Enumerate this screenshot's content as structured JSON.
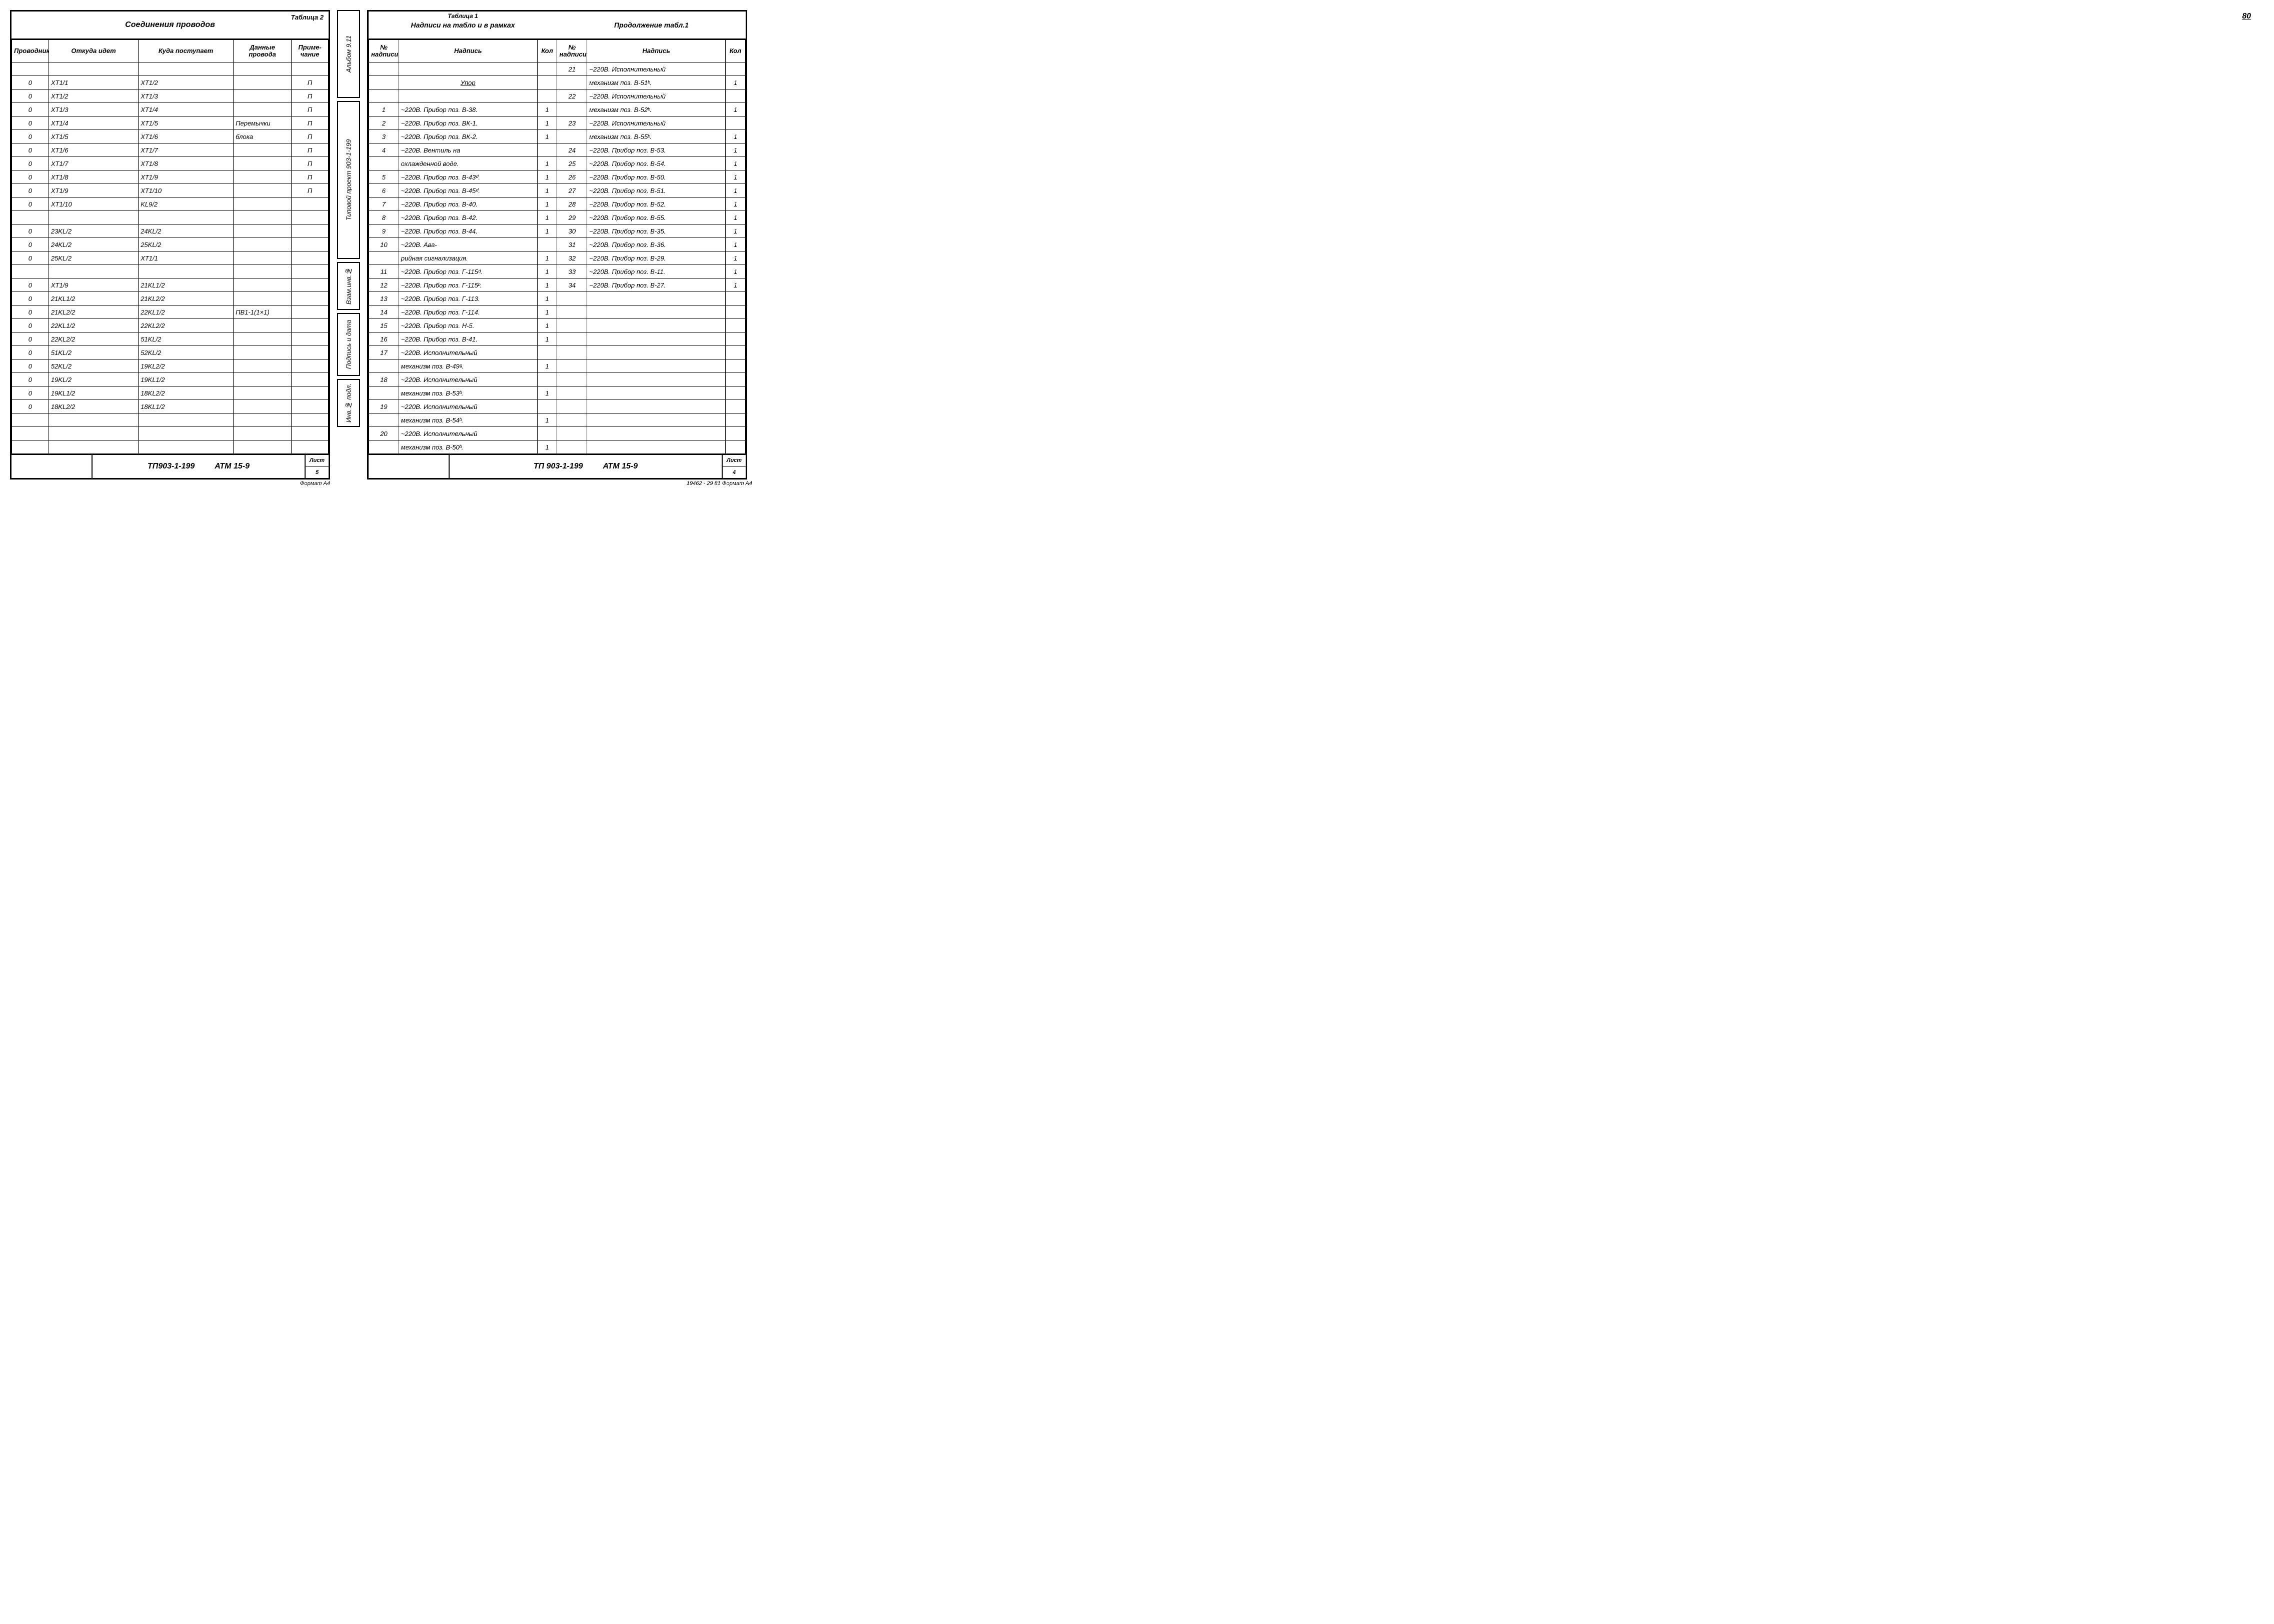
{
  "page_number": "80",
  "format_note_left": "Формат А4",
  "format_note_right": "19462 - 29  81   Формат А4",
  "left": {
    "table_label": "Таблица 2",
    "title": "Соединения проводов",
    "columns": [
      "Проводник",
      "Откуда идет",
      "Куда поступает",
      "Данные провода",
      "Приме-\nчание"
    ],
    "col_widths": [
      "70px",
      "170px",
      "180px",
      "110px",
      "70px"
    ],
    "rows": [
      [
        "",
        "",
        "",
        "",
        ""
      ],
      [
        "0",
        "XT1/1",
        "XT1/2",
        "",
        "П"
      ],
      [
        "0",
        "XT1/2",
        "XT1/3",
        "",
        "П"
      ],
      [
        "0",
        "XT1/3",
        "XT1/4",
        "",
        "П"
      ],
      [
        "0",
        "XT1/4",
        "XT1/5",
        "Перемычки",
        "П"
      ],
      [
        "0",
        "XT1/5",
        "XT1/6",
        "блока",
        "П"
      ],
      [
        "0",
        "XT1/6",
        "XT1/7",
        "",
        "П"
      ],
      [
        "0",
        "XT1/7",
        "XT1/8",
        "",
        "П"
      ],
      [
        "0",
        "XT1/8",
        "XT1/9",
        "",
        "П"
      ],
      [
        "0",
        "XT1/9",
        "XT1/10",
        "",
        "П"
      ],
      [
        "0",
        "XT1/10",
        "KL9/2",
        "",
        ""
      ],
      [
        "",
        "",
        "",
        "",
        ""
      ],
      [
        "0",
        "23KL/2",
        "24KL/2",
        "",
        ""
      ],
      [
        "0",
        "24KL/2",
        "25KL/2",
        "",
        ""
      ],
      [
        "0",
        "25KL/2",
        "XT1/1",
        "",
        ""
      ],
      [
        "",
        "",
        "",
        "",
        ""
      ],
      [
        "0",
        "XT1/9",
        "21KL1/2",
        "",
        ""
      ],
      [
        "0",
        "21KL1/2",
        "21KL2/2",
        "",
        ""
      ],
      [
        "0",
        "21KL2/2",
        "22KL1/2",
        "ПВ1-1(1×1)",
        ""
      ],
      [
        "0",
        "22KL1/2",
        "22KL2/2",
        "",
        ""
      ],
      [
        "0",
        "22KL2/2",
        "51KL/2",
        "",
        ""
      ],
      [
        "0",
        "51KL/2",
        "52KL/2",
        "",
        ""
      ],
      [
        "0",
        "52KL/2",
        "19KL2/2",
        "",
        ""
      ],
      [
        "0",
        "19KL/2",
        "19KL1/2",
        "",
        ""
      ],
      [
        "0",
        "19KL1/2",
        "18KL2/2",
        "",
        ""
      ],
      [
        "0",
        "18KL2/2",
        "18KL1/2",
        "",
        ""
      ],
      [
        "",
        "",
        "",
        "",
        ""
      ],
      [
        "",
        "",
        "",
        "",
        ""
      ],
      [
        "",
        "",
        "",
        "",
        ""
      ]
    ],
    "footer_mid_a": "ТП903-1-199",
    "footer_mid_b": "АТМ 15-9",
    "footer_sheet_label": "Лист",
    "footer_sheet_no": "5"
  },
  "spine": {
    "boxes": [
      "Альбом 9.11",
      "Типовой проект 903-1-199",
      "Взам.инв.№",
      "Подпись и дата",
      "Инв.№ подл."
    ],
    "heights": [
      "160px",
      "300px",
      "80px",
      "110px",
      "80px"
    ]
  },
  "right": {
    "table1_label": "Таблица 1",
    "title1": "Надписи на табло и в рамках",
    "title2": "Продолжение табл.1",
    "columns": [
      "№\nнадписи",
      "Надпись",
      "Кол",
      "№\nнадписи",
      "Надпись",
      "Кол"
    ],
    "col_widths": [
      "54px",
      "250px",
      "36px",
      "54px",
      "250px",
      "36px"
    ],
    "rows": [
      [
        "",
        "",
        "",
        "21",
        "~220В. Исполнительный",
        ""
      ],
      [
        "",
        "Упор",
        "",
        "",
        "механизм поз. В-51ᵇ.",
        "1"
      ],
      [
        "",
        "",
        "",
        "22",
        "~220В. Исполнительный",
        ""
      ],
      [
        "1",
        "~220В. Прибор поз. В-38.",
        "1",
        "",
        "механизм поз. В-52ᵇ.",
        "1"
      ],
      [
        "2",
        "~220В. Прибор поз. ВК-1.",
        "1",
        "23",
        "~220В. Исполнительный",
        ""
      ],
      [
        "3",
        "~220В. Прибор поз. ВК-2.",
        "1",
        "",
        "механизм поз. В-55ᵇ.",
        "1"
      ],
      [
        "4",
        "~220В. Вентиль на",
        "",
        "24",
        "~220В. Прибор поз. В-53.",
        "1"
      ],
      [
        "",
        "охлажденной воде.",
        "1",
        "25",
        "~220В. Прибор поз. В-54.",
        "1"
      ],
      [
        "5",
        "~220В. Прибор поз. В-43ᵈ.",
        "1",
        "26",
        "~220В. Прибор поз. В-50.",
        "1"
      ],
      [
        "6",
        "~220В. Прибор поз. В-45ᵈ.",
        "1",
        "27",
        "~220В. Прибор поз. В-51.",
        "1"
      ],
      [
        "7",
        "~220В. Прибор поз. В-40.",
        "1",
        "28",
        "~220В. Прибор поз. В-52.",
        "1"
      ],
      [
        "8",
        "~220В. Прибор поз. В-42.",
        "1",
        "29",
        "~220В. Прибор поз. В-55.",
        "1"
      ],
      [
        "9",
        "~220В. Прибор поз. В-44.",
        "1",
        "30",
        "~220В. Прибор поз. В-35.",
        "1"
      ],
      [
        "10",
        "~220В.            Ава-",
        "",
        "31",
        "~220В. Прибор поз. В-36.",
        "1"
      ],
      [
        "",
        "рийная сигнализация.",
        "1",
        "32",
        "~220В. Прибор поз. В-29.",
        "1"
      ],
      [
        "11",
        "~220В. Прибор поз. Г-115ᵈ.",
        "1",
        "33",
        "~220В. Прибор поз. В-11.",
        "1"
      ],
      [
        "12",
        "~220В. Прибор поз. Г-115ᵇ.",
        "1",
        "34",
        "~220В. Прибор поз. В-27.",
        "1"
      ],
      [
        "13",
        "~220В. Прибор поз. Г-113.",
        "1",
        "",
        "",
        ""
      ],
      [
        "14",
        "~220В. Прибор поз. Г-114.",
        "1",
        "",
        "",
        ""
      ],
      [
        "15",
        "~220В. Прибор поз. Н-5.",
        "1",
        "",
        "",
        ""
      ],
      [
        "16",
        "~220В. Прибор поз. В-41.",
        "1",
        "",
        "",
        ""
      ],
      [
        "17",
        "~220В. Исполнительный",
        "",
        "",
        "",
        ""
      ],
      [
        "",
        "механизм      поз. В-49ᵍ.",
        "1",
        "",
        "",
        ""
      ],
      [
        "18",
        "~220В. Исполнительный",
        "",
        "",
        "",
        ""
      ],
      [
        "",
        "механизм поз. В-53ᵇ.",
        "1",
        "",
        "",
        ""
      ],
      [
        "19",
        "~220В. Исполнительный",
        "",
        "",
        "",
        ""
      ],
      [
        "",
        "механизм поз. В-54ᵇ.",
        "1",
        "",
        "",
        ""
      ],
      [
        "20",
        "~220В. Исполнительный",
        "",
        "",
        "",
        ""
      ],
      [
        "",
        "механизм поз. В-50ᵇ.",
        "1",
        "",
        "",
        ""
      ]
    ],
    "underline_cells": [
      [
        1,
        1
      ]
    ],
    "footer_mid_a": "ТП 903-1-199",
    "footer_mid_b": "АТМ 15-9",
    "footer_sheet_label": "Лист",
    "footer_sheet_no": "4"
  }
}
